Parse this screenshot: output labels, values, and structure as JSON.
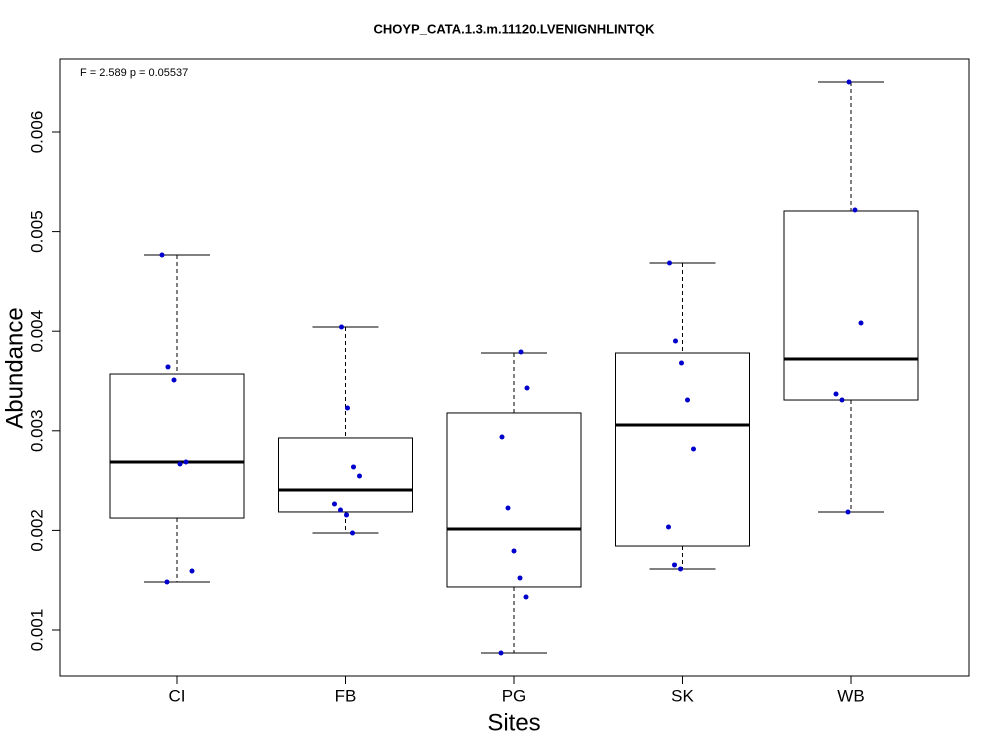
{
  "chart_data": {
    "type": "box",
    "title": "CHOYP_CATA.1.3.m.11120.LVENIGNHLINTQK",
    "annotation": "F = 2.589 p = 0.05537",
    "x_label": "Sites",
    "y_label": "Abundance",
    "categories": [
      "CI",
      "FB",
      "PG",
      "SK",
      "WB"
    ],
    "boxes": [
      {
        "whisker_low": 0.001482,
        "q1": 0.002124,
        "median": 0.002687,
        "q3": 0.00357,
        "whisker_high": 0.004765
      },
      {
        "whisker_low": 0.001974,
        "q1": 0.002185,
        "median": 0.002406,
        "q3": 0.002928,
        "whisker_high": 0.004042
      },
      {
        "whisker_low": 0.000769,
        "q1": 0.001432,
        "median": 0.002014,
        "q3": 0.003179,
        "whisker_high": 0.003781
      },
      {
        "whisker_low": 0.001612,
        "q1": 0.001843,
        "median": 0.003058,
        "q3": 0.003781,
        "whisker_high": 0.004685
      },
      {
        "whisker_low": 0.002185,
        "q1": 0.003309,
        "median": 0.003721,
        "q3": 0.005207,
        "whisker_high": 0.006502
      }
    ],
    "points": [
      [
        0.004765,
        0.003641,
        0.00351,
        0.002667,
        0.002687,
        0.001592,
        0.001482
      ],
      [
        0.004042,
        0.003229,
        0.002637,
        0.002546,
        0.002265,
        0.002205,
        0.002155,
        0.001974
      ],
      [
        0.003791,
        0.00343,
        0.002938,
        0.002225,
        0.001793,
        0.001522,
        0.001331,
        0.000769
      ],
      [
        0.004685,
        0.003902,
        0.003681,
        0.003309,
        0.002817,
        0.002034,
        0.001653,
        0.001612
      ],
      [
        0.006502,
        0.005217,
        0.004082,
        0.003369,
        0.003309,
        0.002185
      ]
    ],
    "point_color": "#0000cc",
    "box_color": "#000000",
    "ylim": [
      0.000538,
      0.006733
    ],
    "yticks": [
      0.001,
      0.002,
      0.003,
      0.004,
      0.005,
      0.006
    ]
  }
}
